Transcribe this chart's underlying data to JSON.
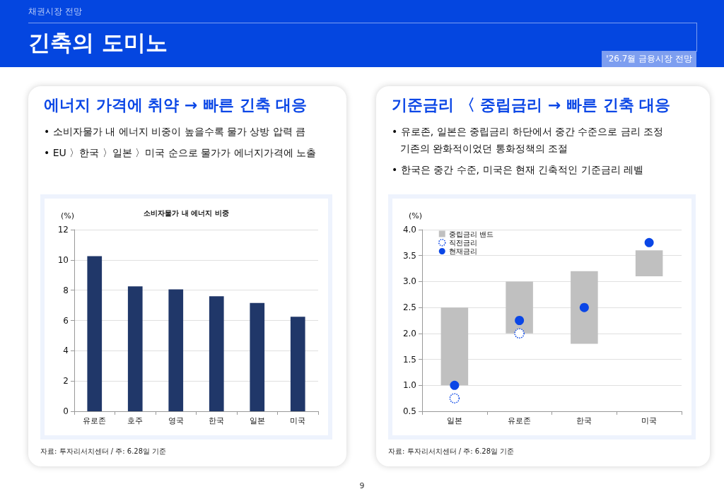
{
  "chart_data": [
    {
      "type": "other",
      "title": "긴축의 도미노",
      "subtitle": "채권시장 전망",
      "annotations": [
        "'26.7월 금융시장 전망",
        "9"
      ]
    },
    {
      "type": "bar",
      "title": "에너지 가격에 취약 → 빠른 긴축 대응",
      "subtitle": "소비자물가 내 에너지 비중",
      "ylabel": "(%)",
      "annotations": [
        "• 소비자물가 내 에너지 비중이 높을수록 물가 상방 압력 큼",
        "• EU 〉한국 〉일본 〉미국 순으로 물가가 에너지가격에 노출",
        "자료: 투자리서치센터 / 주: 6.28일 기준"
      ],
      "categories": [
        "유로존",
        "호주",
        "영국",
        "한국",
        "일본",
        "미국"
      ],
      "values": [
        10.25,
        8.25,
        8.05,
        7.6,
        7.15,
        6.25
      ],
      "color": "#203769",
      "ylim": [
        0,
        12
      ],
      "yticks": [
        0,
        2,
        4,
        6,
        8,
        10,
        12
      ],
      "grid": "y",
      "legend": false
    },
    {
      "type": "bar",
      "title": "기준금리 〈 중립금리 → 빠른 긴축 대응",
      "ylabel": "(%)",
      "annotations": [
        "• 유로존, 일본은 중립금리 하단에서 중간 수준으로 금리 조정\n기존의 완화적이었던 통화정책의 조절",
        "• 한국은 중간 수준, 미국은 현재 긴축적인 기준금리 레벨",
        "자료: 투자리서치센터 / 주: 6.28일 기준"
      ],
      "categories": [
        "일본",
        "유로존",
        "한국",
        "미국"
      ],
      "series": [
        {
          "name": "중립금리 밴드",
          "type": "bar",
          "color": "#c0c0c0",
          "base": [
            1.0,
            2.0,
            1.8,
            3.1
          ],
          "values": [
            1.5,
            1.0,
            1.4,
            0.5
          ]
        },
        {
          "name": "직전금리",
          "type": "scatter",
          "color": "#0a46e6",
          "marker": "circle",
          "line_style": "dotted",
          "values": [
            0.75,
            2.0,
            null,
            null
          ]
        },
        {
          "name": "현재금리",
          "type": "scatter",
          "color": "#0a46e6",
          "marker": "circle",
          "values": [
            1.0,
            2.25,
            2.5,
            3.75
          ]
        }
      ],
      "ylim": [
        0.5,
        4.0
      ],
      "yticks": [
        {
          "value": 0.5,
          "label": "0.5"
        },
        {
          "value": 1,
          "label": "1.0"
        },
        {
          "value": 1.5,
          "label": "1.5"
        },
        {
          "value": 2,
          "label": "2.0"
        },
        {
          "value": 2.5,
          "label": "2.5"
        },
        {
          "value": 3,
          "label": "3.0"
        },
        {
          "value": 3.5,
          "label": "3.5"
        },
        {
          "value": 4,
          "label": "4.0"
        }
      ],
      "grid": "y",
      "legend": "top left"
    }
  ]
}
